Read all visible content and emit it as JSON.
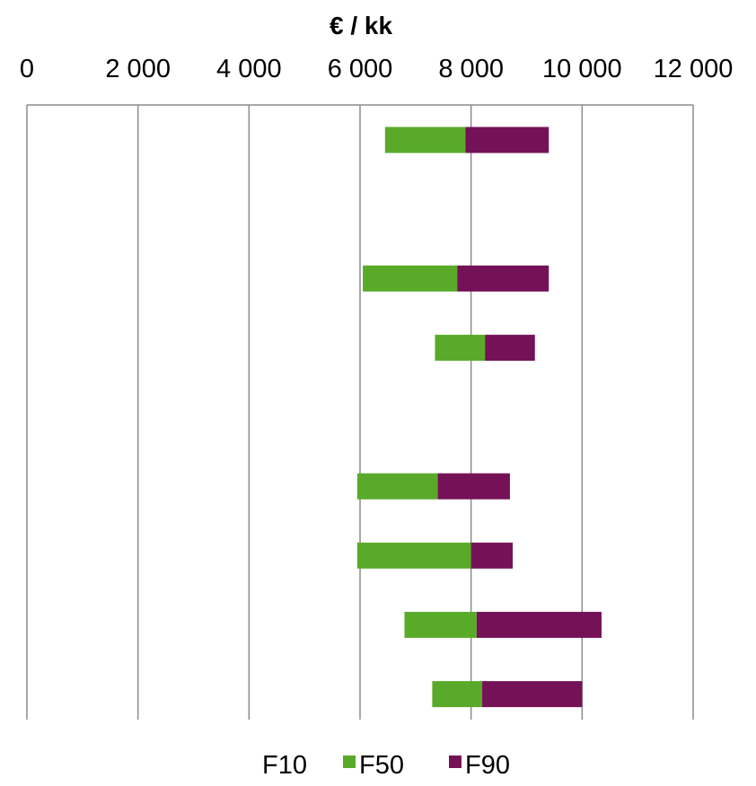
{
  "chart_data": {
    "type": "bar",
    "orientation": "horizontal",
    "stacked": true,
    "title": "€ / kk",
    "xlabel": "",
    "ylabel": "",
    "xlim": [
      0,
      12000
    ],
    "x_ticks": [
      0,
      2000,
      4000,
      6000,
      8000,
      10000,
      12000
    ],
    "x_tick_labels": [
      "0",
      "2 000",
      "4 000",
      "6 000",
      "8 000",
      "10 000",
      "12 000"
    ],
    "x_axis_position": "top",
    "grid": true,
    "legend_position": "bottom",
    "category_slots": 9,
    "rows": [
      {
        "slot": 0,
        "F10": 6450,
        "F50": 7900,
        "F90": 9400
      },
      {
        "slot": 1,
        "F10": null,
        "F50": null,
        "F90": null
      },
      {
        "slot": 2,
        "F10": 6050,
        "F50": 7750,
        "F90": 9400
      },
      {
        "slot": 3,
        "F10": 7350,
        "F50": 8250,
        "F90": 9150
      },
      {
        "slot": 4,
        "F10": null,
        "F50": null,
        "F90": null
      },
      {
        "slot": 5,
        "F10": 5950,
        "F50": 7400,
        "F90": 8700
      },
      {
        "slot": 6,
        "F10": 5950,
        "F50": 8000,
        "F90": 8750
      },
      {
        "slot": 7,
        "F10": 6800,
        "F50": 8100,
        "F90": 10350
      },
      {
        "slot": 8,
        "F10": 7300,
        "F50": 8200,
        "F90": 10000
      }
    ],
    "series": [
      {
        "name": "F10",
        "color": "none"
      },
      {
        "name": "F50",
        "color": "#5aaa2a"
      },
      {
        "name": "F90",
        "color": "#751257"
      }
    ]
  }
}
